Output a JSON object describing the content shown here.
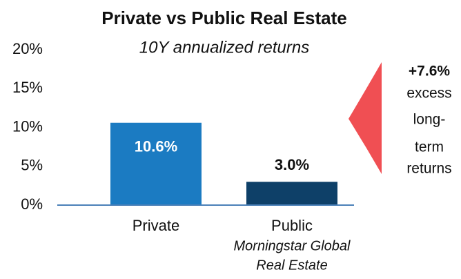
{
  "chart_data": {
    "type": "bar",
    "title": "Private vs Public Real Estate",
    "subtitle": "10Y annualized returns",
    "categories": [
      "Private",
      "Public"
    ],
    "sublabels": [
      null,
      [
        "Morningstar Global",
        "Real Estate"
      ]
    ],
    "values": [
      10.6,
      3.0
    ],
    "value_labels": [
      "10.6%",
      "3.0%"
    ],
    "colors": [
      "#1b7bc2",
      "#0e4068"
    ],
    "ylim": [
      0,
      20
    ],
    "yticks": [
      {
        "value": 0,
        "label": "0%"
      },
      {
        "value": 5,
        "label": "5%"
      },
      {
        "value": 10,
        "label": "10%"
      },
      {
        "value": 15,
        "label": "15%"
      },
      {
        "value": 20,
        "label": "20%"
      }
    ],
    "grid": false,
    "callout": {
      "color": "#f04f53",
      "lines": [
        "+7.6%",
        "excess",
        "long-",
        "term",
        "returns"
      ]
    }
  }
}
